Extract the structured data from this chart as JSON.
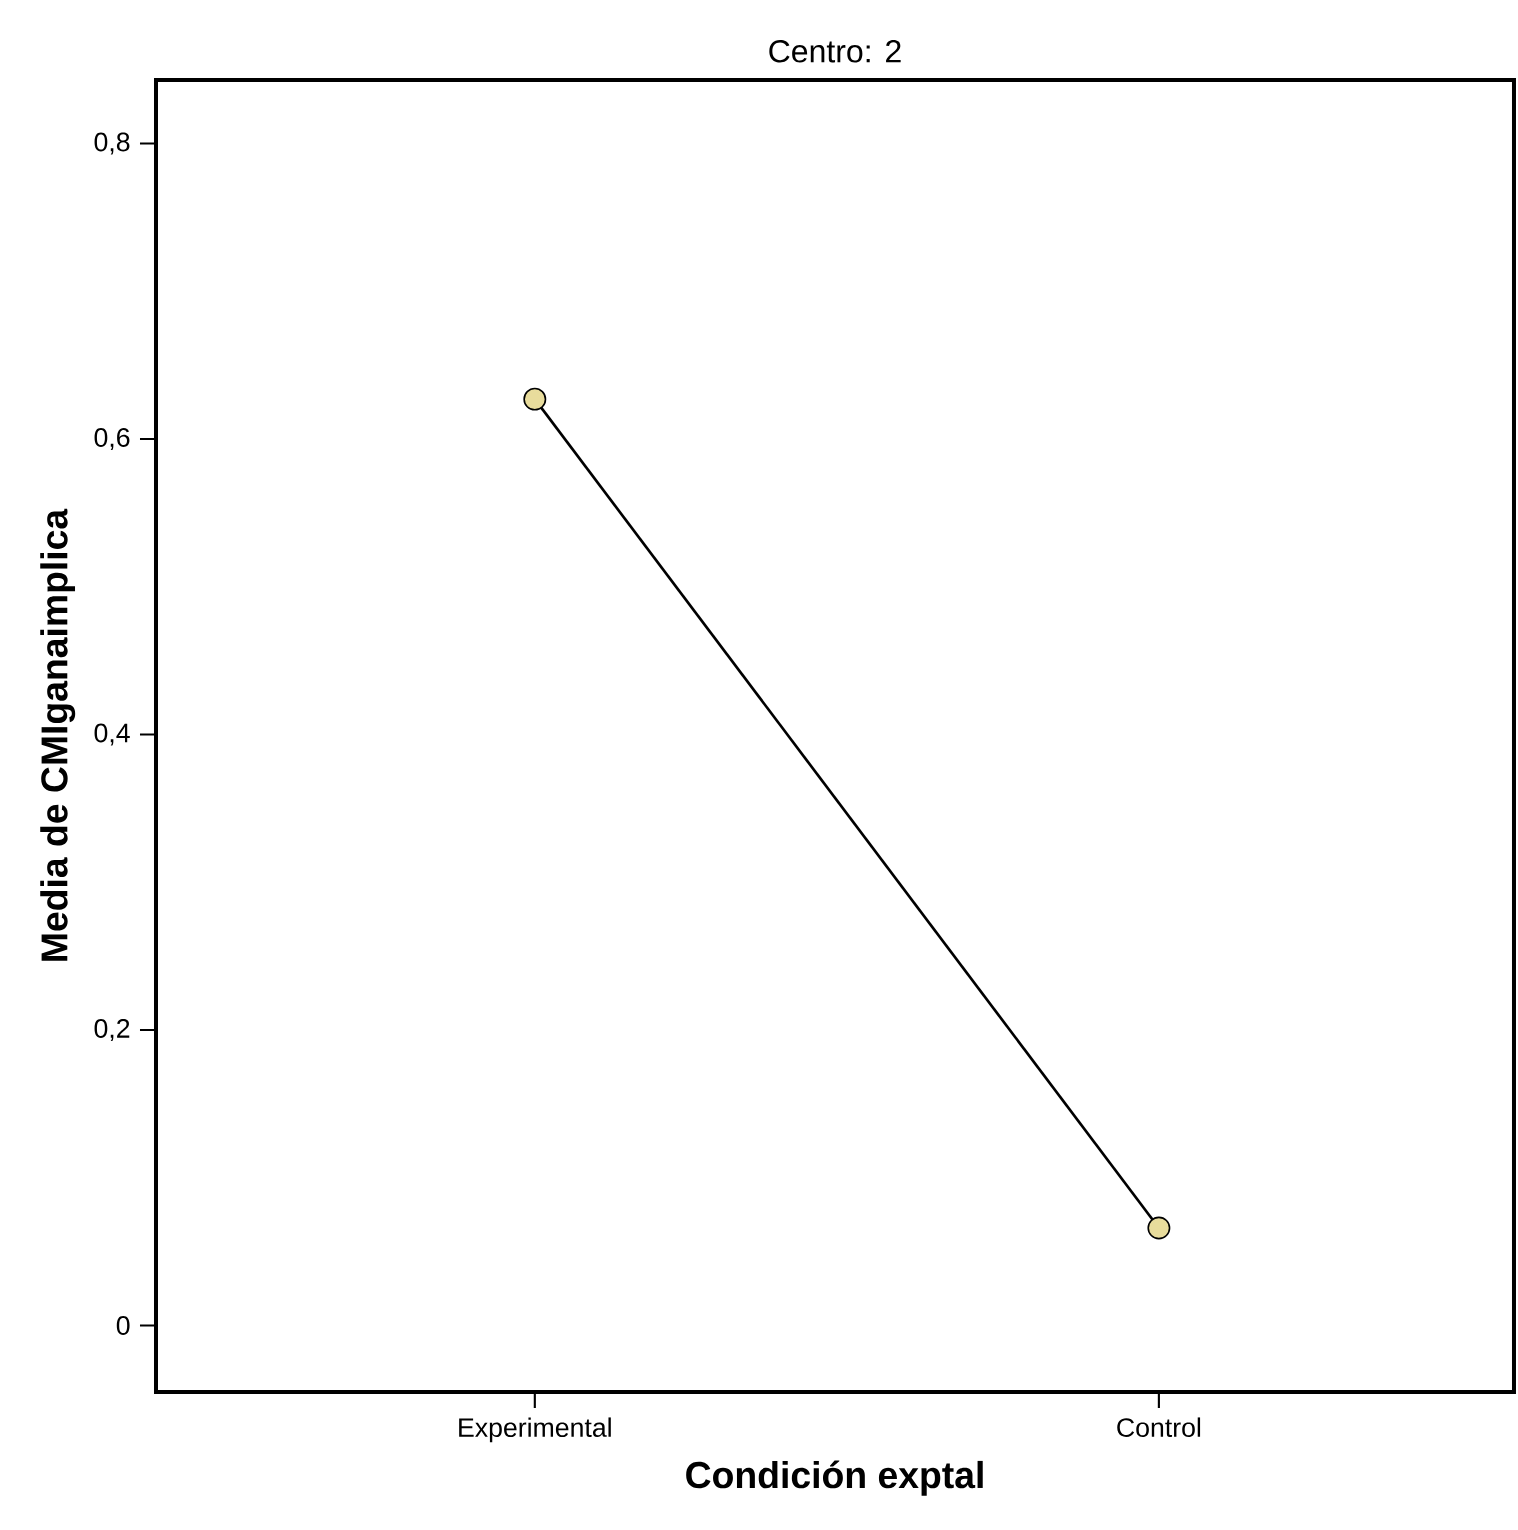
{
  "chart_data": {
    "type": "line",
    "title": "Centro: 2",
    "xlabel": "Condición exptal",
    "ylabel": "Media de CMIganaimplica",
    "categories": [
      "Experimental",
      "Control"
    ],
    "series": [
      {
        "color": "#000000",
        "values": [
          0.627,
          0.066
        ]
      }
    ],
    "marker": "circle",
    "ylim": [
      -0.045,
      0.843
    ],
    "yticks": [
      {
        "value": 0,
        "label": "0"
      },
      {
        "value": 0.2,
        "label": "0,2"
      },
      {
        "value": 0.4,
        "label": "0,4"
      },
      {
        "value": 0.6,
        "label": "0,6"
      },
      {
        "value": 0.8,
        "label": "0,8"
      }
    ],
    "grid": false
  }
}
